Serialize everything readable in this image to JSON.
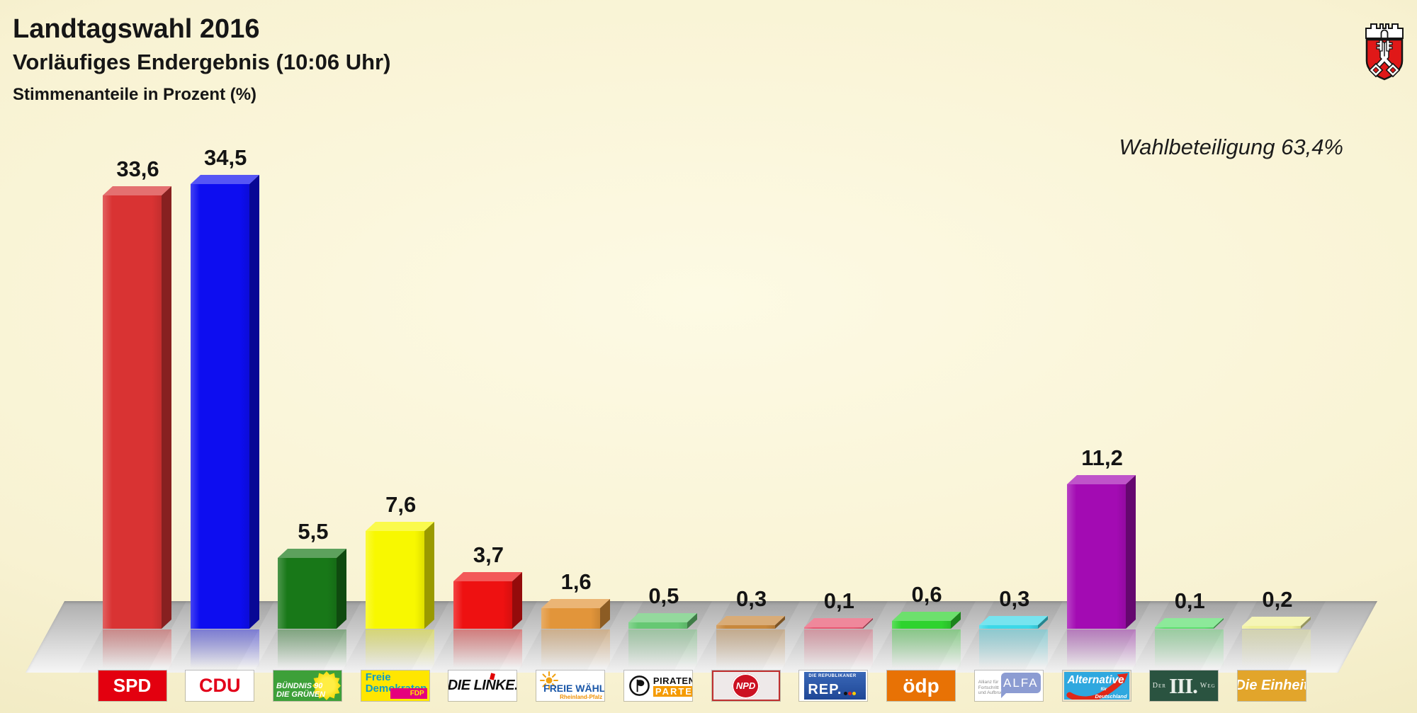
{
  "header": {
    "title": "Landtagswahl 2016",
    "subtitle": "Vorläufiges Endergebnis (10:06 Uhr)",
    "metric_label": "Stimmenanteile in Prozent (%)",
    "turnout_label": "Wahlbeteiligung 63,4%"
  },
  "chart_data": {
    "type": "bar",
    "title": "Landtagswahl 2016 — Vorläufiges Endergebnis (10:06 Uhr)",
    "ylabel": "Stimmenanteile in Prozent (%)",
    "ylim": [
      0,
      36
    ],
    "grid": false,
    "legend_position": "none",
    "turnout_percent": 63.4,
    "categories": [
      "SPD",
      "CDU",
      "BÜNDNIS 90/DIE GRÜNEN",
      "FDP",
      "DIE LINKE",
      "FREIE WÄHLER",
      "PIRATENPARTEI",
      "NPD",
      "DIE REPUBLIKANER",
      "ödp",
      "ALFA",
      "AfD",
      "DER III. WEG",
      "Die Einheit"
    ],
    "values": [
      33.6,
      34.5,
      5.5,
      7.6,
      3.7,
      1.6,
      0.5,
      0.3,
      0.1,
      0.6,
      0.3,
      11.2,
      0.1,
      0.2
    ],
    "value_labels": [
      "33,6",
      "34,5",
      "5,5",
      "7,6",
      "3,7",
      "1,6",
      "0,5",
      "0,3",
      "0,1",
      "0,6",
      "0,3",
      "11,2",
      "0,1",
      "0,2"
    ],
    "bar_colors": [
      "#d93333",
      "#0d0df0",
      "#187818",
      "#f8f800",
      "#ee1111",
      "#e2953a",
      "#66c873",
      "#c8883c",
      "#e85570",
      "#2ed32e",
      "#3cd8e8",
      "#a30bb3",
      "#5ce06e",
      "#f0f098"
    ],
    "party_keys": [
      "spd",
      "cdu",
      "gruene",
      "fdp",
      "linke",
      "freie-waehler",
      "piraten",
      "npd",
      "rep",
      "oedp",
      "alfa",
      "afd",
      "der-iii-weg",
      "die-einheit"
    ]
  },
  "logos": [
    {
      "kind": "solid",
      "key": "spd",
      "bg": "#e3000f",
      "fg": "#ffffff",
      "text": "SPD",
      "size": 26,
      "italic": false
    },
    {
      "kind": "solid",
      "key": "cdu",
      "bg": "#ffffff",
      "fg": "#e2001a",
      "text": "CDU",
      "size": 27,
      "italic": false
    },
    {
      "kind": "gruene",
      "key": "gruene",
      "bg": "#3da039",
      "line1": "BÜNDNIS 90",
      "line2": "DIE GRÜNEN"
    },
    {
      "kind": "fdp",
      "key": "fdp",
      "bg": "#ffe600",
      "line1": "Freie",
      "line2": "Demokraten",
      "text_color": "#0d9cc8",
      "tag": "FDP",
      "tag_bg": "#e5007d"
    },
    {
      "kind": "linke",
      "key": "linke",
      "bg": "#ffffff",
      "text": "DIE LINKE."
    },
    {
      "kind": "fw",
      "key": "freie-waehler",
      "bg": "#ffffff",
      "text": "FREIE WÄHLER",
      "sub": "Rheinland-Pfalz"
    },
    {
      "kind": "piraten",
      "key": "piraten",
      "bg": "#ffffff",
      "line1": "PIRATEN",
      "line2": "PARTEI",
      "bar_bg": "#f59b00"
    },
    {
      "kind": "npd",
      "key": "npd",
      "text": "NPD"
    },
    {
      "kind": "rep",
      "key": "rep",
      "small": "DIE REPUBLIKANER",
      "text": "REP."
    },
    {
      "kind": "solid",
      "key": "oedp",
      "bg": "#e87205",
      "fg": "#ffffff",
      "text": "ödp",
      "size": 28,
      "italic": false
    },
    {
      "kind": "alfa",
      "key": "alfa",
      "small1": "Allianz für",
      "small2": "Fortschritt",
      "small3": "und Aufbruch",
      "text": "ALFA",
      "bubble_bg": "#8c9cd2"
    },
    {
      "kind": "afd",
      "key": "afd",
      "bg": "#2fa8df",
      "text": "Alternative",
      "small1": "für",
      "small2": "Deutschland",
      "arrow_color": "#e02818"
    },
    {
      "kind": "weg3",
      "key": "der-iii-weg",
      "bg": "#2a5340",
      "left": "Der",
      "mid": "III.",
      "right": "Weg"
    },
    {
      "kind": "solid",
      "key": "die-einheit",
      "bg": "#e2a52b",
      "fg": "#ffffff",
      "text": "Die Einheit",
      "size": 20,
      "italic": true
    }
  ]
}
